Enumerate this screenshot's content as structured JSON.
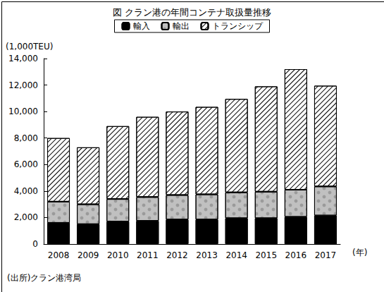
{
  "chart_data": {
    "type": "bar",
    "title": "図 クラン港の年間コンテナ取扱量推移",
    "y_unit": "(1,000TEU)",
    "x_unit": "(年)",
    "source": "(出所)クラン港湾局",
    "categories": [
      "2008",
      "2009",
      "2010",
      "2011",
      "2012",
      "2013",
      "2014",
      "2015",
      "2016",
      "2017"
    ],
    "series": [
      {
        "name": "輸入",
        "color": "#000000",
        "values": [
          1600,
          1500,
          1700,
          1750,
          1850,
          1850,
          1950,
          1950,
          2050,
          2150
        ]
      },
      {
        "name": "輸出",
        "color": "#c0c0c0",
        "values": [
          1600,
          1500,
          1700,
          1800,
          1850,
          1900,
          1950,
          2000,
          2050,
          2200
        ]
      },
      {
        "name": "トランシップ",
        "color": "#ffffff",
        "values": [
          4800,
          4300,
          5500,
          6050,
          6300,
          6600,
          7050,
          7950,
          9100,
          7600
        ]
      }
    ],
    "stacked": true,
    "grid": false,
    "legend": "top",
    "ylim": [
      0,
      14000
    ],
    "yticks": [
      0,
      {
        "value": 2000,
        "label": "2,000"
      },
      {
        "value": 4000,
        "label": "4,000"
      },
      {
        "value": 6000,
        "label": "6,000"
      },
      {
        "value": 8000,
        "label": "8,000"
      },
      {
        "value": 10000,
        "label": "10,000"
      },
      {
        "value": 12000,
        "label": "12,000"
      },
      {
        "value": 14000,
        "label": "14,000"
      }
    ]
  }
}
